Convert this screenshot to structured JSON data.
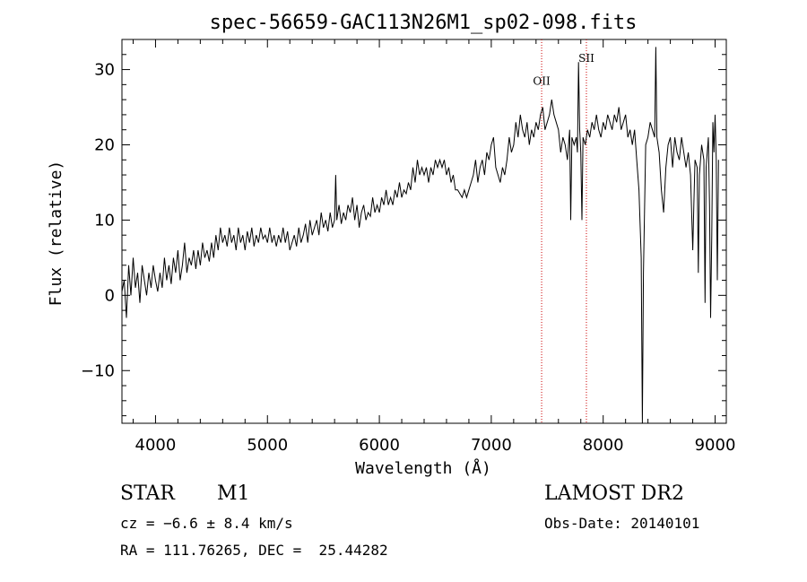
{
  "chart_data": {
    "type": "line",
    "title": "spec-56659-GAC113N26M1_sp02-098.fits",
    "xlabel": "Wavelength (Å)",
    "ylabel": "Flux (relative)",
    "xlim": [
      3700,
      9100
    ],
    "ylim": [
      -17,
      34
    ],
    "x_ticks": [
      4000,
      5000,
      6000,
      7000,
      8000,
      9000
    ],
    "y_ticks": [
      -10,
      0,
      10,
      20,
      30
    ],
    "grid": false,
    "series": [
      {
        "color": "#000000",
        "points": [
          [
            3700,
            0.5
          ],
          [
            3720,
            2
          ],
          [
            3740,
            -3
          ],
          [
            3760,
            4
          ],
          [
            3780,
            0
          ],
          [
            3800,
            5
          ],
          [
            3820,
            1
          ],
          [
            3840,
            3
          ],
          [
            3860,
            -1
          ],
          [
            3880,
            4
          ],
          [
            3900,
            2
          ],
          [
            3920,
            0
          ],
          [
            3940,
            3
          ],
          [
            3960,
            1
          ],
          [
            3980,
            4
          ],
          [
            4000,
            2
          ],
          [
            4020,
            0.5
          ],
          [
            4040,
            3
          ],
          [
            4060,
            1
          ],
          [
            4080,
            5
          ],
          [
            4100,
            2
          ],
          [
            4120,
            4
          ],
          [
            4140,
            1.5
          ],
          [
            4160,
            5
          ],
          [
            4180,
            3
          ],
          [
            4200,
            6
          ],
          [
            4220,
            2
          ],
          [
            4240,
            4
          ],
          [
            4260,
            7
          ],
          [
            4280,
            3
          ],
          [
            4300,
            5
          ],
          [
            4320,
            4
          ],
          [
            4340,
            6
          ],
          [
            4360,
            3.5
          ],
          [
            4380,
            6
          ],
          [
            4400,
            4
          ],
          [
            4420,
            7
          ],
          [
            4440,
            5
          ],
          [
            4460,
            6
          ],
          [
            4480,
            4.5
          ],
          [
            4500,
            7
          ],
          [
            4520,
            5
          ],
          [
            4540,
            8
          ],
          [
            4560,
            6
          ],
          [
            4580,
            9
          ],
          [
            4600,
            7
          ],
          [
            4620,
            8
          ],
          [
            4640,
            6.5
          ],
          [
            4660,
            9
          ],
          [
            4680,
            7
          ],
          [
            4700,
            8
          ],
          [
            4720,
            6
          ],
          [
            4740,
            9
          ],
          [
            4760,
            7
          ],
          [
            4780,
            8
          ],
          [
            4800,
            6
          ],
          [
            4820,
            8.5
          ],
          [
            4840,
            7
          ],
          [
            4860,
            9
          ],
          [
            4880,
            6.5
          ],
          [
            4900,
            8
          ],
          [
            4920,
            7
          ],
          [
            4940,
            9
          ],
          [
            4960,
            7.5
          ],
          [
            4980,
            8
          ],
          [
            5000,
            7
          ],
          [
            5020,
            9
          ],
          [
            5040,
            7
          ],
          [
            5060,
            8
          ],
          [
            5080,
            6.5
          ],
          [
            5100,
            8
          ],
          [
            5120,
            7
          ],
          [
            5140,
            9
          ],
          [
            5160,
            7
          ],
          [
            5180,
            8.5
          ],
          [
            5200,
            6
          ],
          [
            5220,
            7
          ],
          [
            5240,
            8
          ],
          [
            5260,
            6.5
          ],
          [
            5280,
            9
          ],
          [
            5300,
            7
          ],
          [
            5320,
            8
          ],
          [
            5340,
            9.5
          ],
          [
            5360,
            7
          ],
          [
            5380,
            10
          ],
          [
            5400,
            8
          ],
          [
            5420,
            9
          ],
          [
            5440,
            10
          ],
          [
            5460,
            8
          ],
          [
            5480,
            11
          ],
          [
            5500,
            9
          ],
          [
            5520,
            10
          ],
          [
            5540,
            8.5
          ],
          [
            5560,
            11
          ],
          [
            5580,
            9
          ],
          [
            5600,
            10
          ],
          [
            5610,
            16
          ],
          [
            5620,
            10
          ],
          [
            5640,
            12
          ],
          [
            5660,
            9.5
          ],
          [
            5680,
            11
          ],
          [
            5700,
            10
          ],
          [
            5720,
            12
          ],
          [
            5740,
            11
          ],
          [
            5760,
            13
          ],
          [
            5780,
            10
          ],
          [
            5800,
            12
          ],
          [
            5820,
            9
          ],
          [
            5840,
            11
          ],
          [
            5860,
            12
          ],
          [
            5880,
            10
          ],
          [
            5900,
            11
          ],
          [
            5920,
            10.5
          ],
          [
            5940,
            13
          ],
          [
            5960,
            11
          ],
          [
            5980,
            12
          ],
          [
            6000,
            11
          ],
          [
            6020,
            13
          ],
          [
            6040,
            12
          ],
          [
            6060,
            14
          ],
          [
            6080,
            12
          ],
          [
            6100,
            13
          ],
          [
            6120,
            12
          ],
          [
            6140,
            14
          ],
          [
            6160,
            13
          ],
          [
            6180,
            15
          ],
          [
            6200,
            13
          ],
          [
            6220,
            14
          ],
          [
            6240,
            13.5
          ],
          [
            6260,
            15
          ],
          [
            6280,
            14
          ],
          [
            6300,
            17
          ],
          [
            6320,
            15
          ],
          [
            6340,
            18
          ],
          [
            6360,
            16
          ],
          [
            6380,
            17
          ],
          [
            6400,
            16
          ],
          [
            6420,
            17
          ],
          [
            6440,
            15
          ],
          [
            6460,
            17
          ],
          [
            6480,
            16
          ],
          [
            6500,
            18
          ],
          [
            6520,
            17
          ],
          [
            6540,
            18
          ],
          [
            6560,
            17
          ],
          [
            6580,
            18
          ],
          [
            6600,
            16
          ],
          [
            6620,
            17
          ],
          [
            6640,
            15
          ],
          [
            6660,
            16
          ],
          [
            6680,
            14
          ],
          [
            6700,
            14
          ],
          [
            6720,
            13.5
          ],
          [
            6740,
            13
          ],
          [
            6760,
            14
          ],
          [
            6780,
            13
          ],
          [
            6800,
            14
          ],
          [
            6820,
            15
          ],
          [
            6840,
            16
          ],
          [
            6860,
            18
          ],
          [
            6880,
            15
          ],
          [
            6900,
            17
          ],
          [
            6920,
            18
          ],
          [
            6940,
            16
          ],
          [
            6960,
            19
          ],
          [
            6980,
            18
          ],
          [
            7000,
            20
          ],
          [
            7020,
            21
          ],
          [
            7040,
            17
          ],
          [
            7060,
            16
          ],
          [
            7080,
            15
          ],
          [
            7100,
            17
          ],
          [
            7120,
            16
          ],
          [
            7140,
            18
          ],
          [
            7160,
            21
          ],
          [
            7180,
            19
          ],
          [
            7200,
            20
          ],
          [
            7220,
            23
          ],
          [
            7240,
            21
          ],
          [
            7260,
            24
          ],
          [
            7280,
            22
          ],
          [
            7300,
            21
          ],
          [
            7320,
            23
          ],
          [
            7340,
            20
          ],
          [
            7360,
            22
          ],
          [
            7380,
            21
          ],
          [
            7400,
            23
          ],
          [
            7420,
            22
          ],
          [
            7440,
            24
          ],
          [
            7460,
            25
          ],
          [
            7480,
            22
          ],
          [
            7500,
            23
          ],
          [
            7520,
            24
          ],
          [
            7540,
            26
          ],
          [
            7560,
            24
          ],
          [
            7580,
            23
          ],
          [
            7600,
            22
          ],
          [
            7620,
            19
          ],
          [
            7640,
            21
          ],
          [
            7660,
            20
          ],
          [
            7680,
            18
          ],
          [
            7700,
            22
          ],
          [
            7710,
            10
          ],
          [
            7720,
            21
          ],
          [
            7740,
            20
          ],
          [
            7760,
            21
          ],
          [
            7770,
            19
          ],
          [
            7780,
            31
          ],
          [
            7790,
            22
          ],
          [
            7800,
            19
          ],
          [
            7810,
            10
          ],
          [
            7820,
            21
          ],
          [
            7840,
            20
          ],
          [
            7860,
            22
          ],
          [
            7880,
            21
          ],
          [
            7900,
            23
          ],
          [
            7920,
            22
          ],
          [
            7940,
            24
          ],
          [
            7960,
            22
          ],
          [
            7980,
            21
          ],
          [
            8000,
            23
          ],
          [
            8020,
            22
          ],
          [
            8040,
            24
          ],
          [
            8060,
            23
          ],
          [
            8080,
            22
          ],
          [
            8100,
            24
          ],
          [
            8120,
            23
          ],
          [
            8140,
            25
          ],
          [
            8160,
            22
          ],
          [
            8180,
            23
          ],
          [
            8200,
            24
          ],
          [
            8220,
            21
          ],
          [
            8240,
            22
          ],
          [
            8260,
            20
          ],
          [
            8280,
            22
          ],
          [
            8300,
            18
          ],
          [
            8320,
            14
          ],
          [
            8340,
            5
          ],
          [
            8350,
            -17
          ],
          [
            8360,
            3
          ],
          [
            8380,
            20
          ],
          [
            8400,
            21
          ],
          [
            8420,
            23
          ],
          [
            8440,
            22
          ],
          [
            8460,
            21
          ],
          [
            8470,
            33
          ],
          [
            8480,
            21
          ],
          [
            8500,
            19
          ],
          [
            8520,
            14
          ],
          [
            8540,
            11
          ],
          [
            8560,
            17
          ],
          [
            8580,
            20
          ],
          [
            8600,
            21
          ],
          [
            8620,
            17
          ],
          [
            8640,
            21
          ],
          [
            8660,
            19
          ],
          [
            8680,
            18
          ],
          [
            8700,
            21
          ],
          [
            8720,
            19
          ],
          [
            8740,
            17
          ],
          [
            8760,
            19
          ],
          [
            8780,
            16
          ],
          [
            8800,
            6
          ],
          [
            8810,
            12
          ],
          [
            8820,
            18
          ],
          [
            8840,
            17
          ],
          [
            8850,
            3
          ],
          [
            8860,
            16
          ],
          [
            8880,
            20
          ],
          [
            8900,
            18
          ],
          [
            8910,
            -1
          ],
          [
            8920,
            17
          ],
          [
            8940,
            21
          ],
          [
            8950,
            12
          ],
          [
            8960,
            -3
          ],
          [
            8970,
            8
          ],
          [
            8980,
            23
          ],
          [
            8990,
            19
          ],
          [
            9000,
            24
          ],
          [
            9010,
            18
          ],
          [
            9020,
            2
          ],
          [
            9030,
            18
          ]
        ]
      }
    ],
    "annotations": [
      {
        "text": "OII",
        "x": 7450,
        "y": 28,
        "line_color": "#cc0000",
        "line_style": "dotted"
      },
      {
        "text": "SII",
        "x": 7850,
        "y": 31,
        "line_color": "#cc0000",
        "line_style": "dotted"
      }
    ]
  },
  "info": {
    "class_label": "STAR",
    "subclass_label": "M1",
    "cz_text": "cz = −6.6 ± 8.4 km/s",
    "radec_text": "RA = 111.76265, DEC =  25.44282",
    "survey": "LAMOST DR2",
    "obs_date": "Obs-Date: 20140101"
  }
}
